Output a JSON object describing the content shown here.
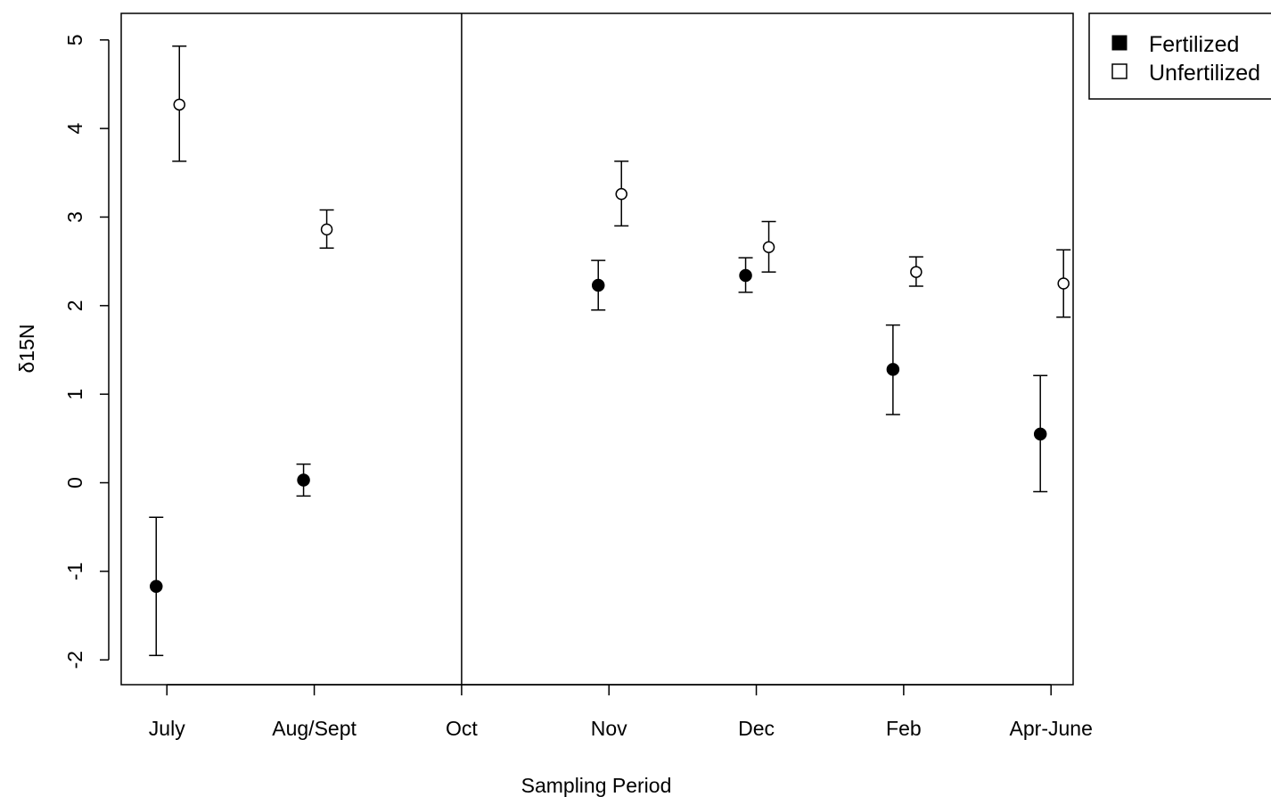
{
  "chart_data": {
    "type": "scatter",
    "xlabel": "Sampling Period",
    "ylabel": "δ15N",
    "categories": [
      "July",
      "Aug/Sept",
      "Oct",
      "Nov",
      "Dec",
      "Feb",
      "Apr-June"
    ],
    "yticks": [
      -2,
      -1,
      0,
      1,
      2,
      3,
      4,
      5
    ],
    "ylim": [
      -2.28,
      5.3
    ],
    "xlim": [
      -0.31,
      6.15
    ],
    "divider_at": "Oct",
    "legend_position": "top-right (outside plot)",
    "grid": false,
    "series": [
      {
        "name": "Fertilized",
        "marker": "filled-circle",
        "points": [
          {
            "category": "July",
            "y": -1.17,
            "lower": -1.95,
            "upper": -0.39
          },
          {
            "category": "Aug/Sept",
            "y": 0.03,
            "lower": -0.15,
            "upper": 0.21
          },
          {
            "category": "Nov",
            "y": 2.23,
            "lower": 1.95,
            "upper": 2.51
          },
          {
            "category": "Dec",
            "y": 2.34,
            "lower": 2.15,
            "upper": 2.54
          },
          {
            "category": "Feb",
            "y": 1.28,
            "lower": 0.77,
            "upper": 1.78
          },
          {
            "category": "Apr-June",
            "y": 0.55,
            "lower": -0.1,
            "upper": 1.21
          }
        ]
      },
      {
        "name": "Unfertilized",
        "marker": "open-circle",
        "points": [
          {
            "category": "July",
            "y": 4.27,
            "lower": 3.63,
            "upper": 4.93
          },
          {
            "category": "Aug/Sept",
            "y": 2.86,
            "lower": 2.65,
            "upper": 3.08
          },
          {
            "category": "Nov",
            "y": 3.26,
            "lower": 2.9,
            "upper": 3.63
          },
          {
            "category": "Dec",
            "y": 2.66,
            "lower": 2.38,
            "upper": 2.95
          },
          {
            "category": "Feb",
            "y": 2.38,
            "lower": 2.22,
            "upper": 2.55
          },
          {
            "category": "Apr-June",
            "y": 2.25,
            "lower": 1.87,
            "upper": 2.63
          }
        ]
      }
    ]
  }
}
